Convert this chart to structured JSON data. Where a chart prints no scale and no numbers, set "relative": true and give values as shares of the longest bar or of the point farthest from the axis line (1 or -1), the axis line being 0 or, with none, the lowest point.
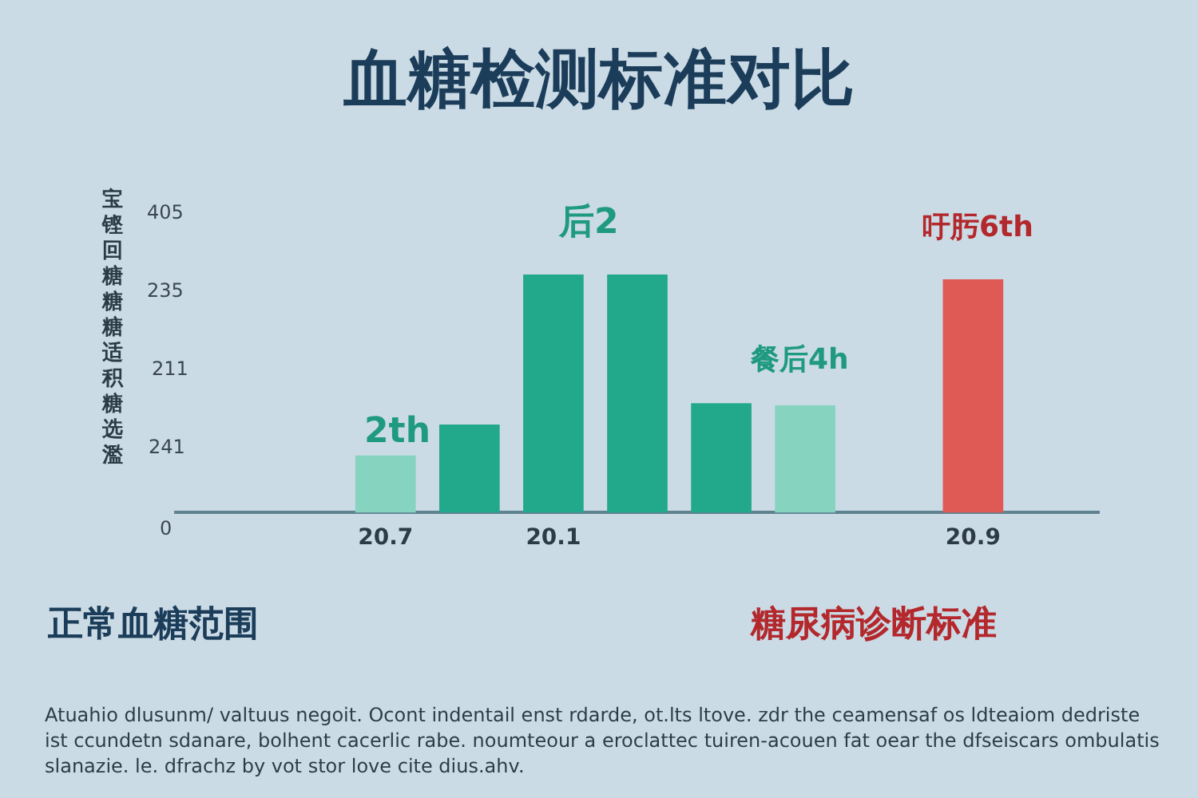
{
  "chart_data": {
    "type": "bar",
    "title": "血糖检测标准对比",
    "ylabel": "宝铿回糖糖糖适积糖选濫",
    "relative": true,
    "grid": false,
    "legend": false,
    "categories": [
      null,
      null,
      "20.7",
      null,
      "20.1",
      null,
      null,
      null,
      null,
      "20.9",
      null
    ],
    "values": [
      null,
      null,
      0.24,
      0.37,
      1,
      1,
      0.46,
      0.45,
      null,
      0.98,
      null
    ],
    "colors": [
      "#86d3bf",
      "#86d3bf",
      "#86d3bf",
      "#22a88a",
      "#22a88a",
      "#22a88a",
      "#22a88a",
      "#86d3bf",
      "#86d3bf",
      "#e05a55",
      "#e05a55"
    ],
    "annotations": [
      "405",
      "235",
      "211",
      "241",
      "0",
      "2th",
      "后2",
      "餐后4h",
      "吁肟6th",
      "正常血糖范围",
      "糖尿病诊断标准",
      "Atuahio dlusunm/ valtuus negoit. Ocont indentail enst rdarde, ot.lts ltove. zdr the ceamensaf os ldteaiom dedriste ist ccundetn sdanare, bolhent cacerlic rabe. noumteour a eroclattec tuiren-acouen fat oear the dfseiscars ombulatis slanazie. le. dfrachz by vot stor love cite dius.ahv."
    ]
  }
}
